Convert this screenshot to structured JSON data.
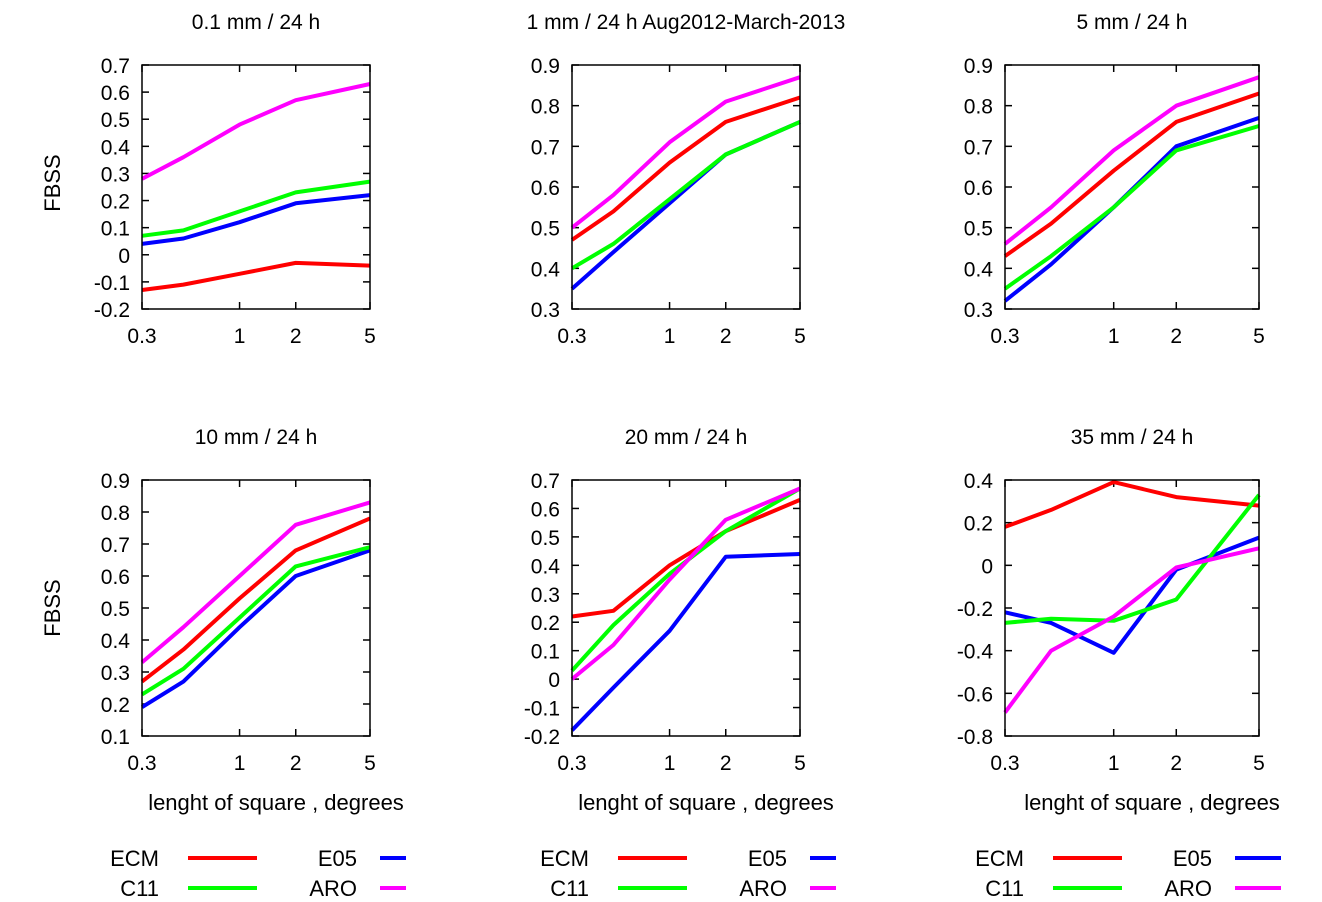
{
  "figure": {
    "ylabel": "FBSS",
    "xlabel": "lenght of square , degrees",
    "legend": [
      {
        "name": "ECM",
        "color": "#ff0000"
      },
      {
        "name": "E05",
        "color": "#0000ff"
      },
      {
        "name": "C11",
        "color": "#00ff00"
      },
      {
        "name": "ARO",
        "color": "#ff00ff"
      }
    ]
  },
  "chart_data": [
    {
      "type": "line",
      "title": "0.1 mm / 24 h",
      "ylabel": "FBSS",
      "xlabel": "",
      "x_scale": "log",
      "x": [
        0.3,
        0.5,
        1,
        2,
        5
      ],
      "xticks": [
        0.3,
        1,
        2,
        5
      ],
      "ylim": [
        -0.2,
        0.7
      ],
      "yticks": [
        -0.2,
        -0.1,
        0,
        0.1,
        0.2,
        0.3,
        0.4,
        0.5,
        0.6,
        0.7
      ],
      "series": [
        {
          "name": "ECM",
          "color": "#ff0000",
          "values": [
            -0.13,
            -0.11,
            -0.07,
            -0.03,
            -0.04
          ]
        },
        {
          "name": "E05",
          "color": "#0000ff",
          "values": [
            0.04,
            0.06,
            0.12,
            0.19,
            0.22
          ]
        },
        {
          "name": "C11",
          "color": "#00ff00",
          "values": [
            0.07,
            0.09,
            0.16,
            0.23,
            0.27
          ]
        },
        {
          "name": "ARO",
          "color": "#ff00ff",
          "values": [
            0.28,
            0.36,
            0.48,
            0.57,
            0.63
          ]
        }
      ]
    },
    {
      "type": "line",
      "title": "1 mm / 24 h Aug2012-March-2013",
      "ylabel": "",
      "xlabel": "",
      "x_scale": "log",
      "x": [
        0.3,
        0.5,
        1,
        2,
        5
      ],
      "xticks": [
        0.3,
        1,
        2,
        5
      ],
      "ylim": [
        0.3,
        0.9
      ],
      "yticks": [
        0.3,
        0.4,
        0.5,
        0.6,
        0.7,
        0.8,
        0.9
      ],
      "series": [
        {
          "name": "ECM",
          "color": "#ff0000",
          "values": [
            0.47,
            0.54,
            0.66,
            0.76,
            0.82
          ]
        },
        {
          "name": "E05",
          "color": "#0000ff",
          "values": [
            0.35,
            0.44,
            0.56,
            0.68,
            0.76
          ]
        },
        {
          "name": "C11",
          "color": "#00ff00",
          "values": [
            0.4,
            0.46,
            0.57,
            0.68,
            0.76
          ]
        },
        {
          "name": "ARO",
          "color": "#ff00ff",
          "values": [
            0.5,
            0.58,
            0.71,
            0.81,
            0.87
          ]
        }
      ]
    },
    {
      "type": "line",
      "title": "5 mm / 24 h",
      "ylabel": "",
      "xlabel": "",
      "x_scale": "log",
      "x": [
        0.3,
        0.5,
        1,
        2,
        5
      ],
      "xticks": [
        0.3,
        1,
        2,
        5
      ],
      "ylim": [
        0.3,
        0.9
      ],
      "yticks": [
        0.3,
        0.4,
        0.5,
        0.6,
        0.7,
        0.8,
        0.9
      ],
      "series": [
        {
          "name": "ECM",
          "color": "#ff0000",
          "values": [
            0.43,
            0.51,
            0.64,
            0.76,
            0.83
          ]
        },
        {
          "name": "E05",
          "color": "#0000ff",
          "values": [
            0.32,
            0.41,
            0.55,
            0.7,
            0.77
          ]
        },
        {
          "name": "C11",
          "color": "#00ff00",
          "values": [
            0.35,
            0.43,
            0.55,
            0.69,
            0.75
          ]
        },
        {
          "name": "ARO",
          "color": "#ff00ff",
          "values": [
            0.46,
            0.55,
            0.69,
            0.8,
            0.87
          ]
        }
      ]
    },
    {
      "type": "line",
      "title": "10 mm / 24 h",
      "ylabel": "FBSS",
      "xlabel": "lenght of square , degrees",
      "x_scale": "log",
      "x": [
        0.3,
        0.5,
        1,
        2,
        5
      ],
      "xticks": [
        0.3,
        1,
        2,
        5
      ],
      "ylim": [
        0.1,
        0.9
      ],
      "yticks": [
        0.1,
        0.2,
        0.3,
        0.4,
        0.5,
        0.6,
        0.7,
        0.8,
        0.9
      ],
      "series": [
        {
          "name": "ECM",
          "color": "#ff0000",
          "values": [
            0.27,
            0.37,
            0.53,
            0.68,
            0.78
          ]
        },
        {
          "name": "E05",
          "color": "#0000ff",
          "values": [
            0.19,
            0.27,
            0.44,
            0.6,
            0.68
          ]
        },
        {
          "name": "C11",
          "color": "#00ff00",
          "values": [
            0.23,
            0.31,
            0.47,
            0.63,
            0.69
          ]
        },
        {
          "name": "ARO",
          "color": "#ff00ff",
          "values": [
            0.33,
            0.44,
            0.6,
            0.76,
            0.83
          ]
        }
      ]
    },
    {
      "type": "line",
      "title": "20 mm / 24 h",
      "ylabel": "",
      "xlabel": "lenght of square , degrees",
      "x_scale": "log",
      "x": [
        0.3,
        0.5,
        1,
        2,
        5
      ],
      "xticks": [
        0.3,
        1,
        2,
        5
      ],
      "ylim": [
        -0.2,
        0.7
      ],
      "yticks": [
        -0.2,
        -0.1,
        0,
        0.1,
        0.2,
        0.3,
        0.4,
        0.5,
        0.6,
        0.7
      ],
      "series": [
        {
          "name": "ECM",
          "color": "#ff0000",
          "values": [
            0.22,
            0.24,
            0.4,
            0.52,
            0.63
          ]
        },
        {
          "name": "E05",
          "color": "#0000ff",
          "values": [
            -0.18,
            -0.03,
            0.17,
            0.43,
            0.44
          ]
        },
        {
          "name": "C11",
          "color": "#00ff00",
          "values": [
            0.03,
            0.19,
            0.37,
            0.52,
            0.67
          ]
        },
        {
          "name": "ARO",
          "color": "#ff00ff",
          "values": [
            0.0,
            0.12,
            0.35,
            0.56,
            0.67
          ]
        }
      ]
    },
    {
      "type": "line",
      "title": "35 mm / 24 h",
      "ylabel": "",
      "xlabel": "lenght of square , degrees",
      "x_scale": "log",
      "x": [
        0.3,
        0.5,
        1,
        2,
        5
      ],
      "xticks": [
        0.3,
        1,
        2,
        5
      ],
      "ylim": [
        -0.8,
        0.4
      ],
      "yticks": [
        -0.8,
        -0.6,
        -0.4,
        -0.2,
        0,
        0.2,
        0.4
      ],
      "series": [
        {
          "name": "ECM",
          "color": "#ff0000",
          "values": [
            0.18,
            0.26,
            0.39,
            0.32,
            0.28
          ]
        },
        {
          "name": "E05",
          "color": "#0000ff",
          "values": [
            -0.22,
            -0.27,
            -0.41,
            -0.02,
            0.13
          ]
        },
        {
          "name": "C11",
          "color": "#00ff00",
          "values": [
            -0.27,
            -0.25,
            -0.26,
            -0.16,
            0.33
          ]
        },
        {
          "name": "ARO",
          "color": "#ff00ff",
          "values": [
            -0.69,
            -0.4,
            -0.24,
            -0.01,
            0.08
          ]
        }
      ]
    }
  ]
}
